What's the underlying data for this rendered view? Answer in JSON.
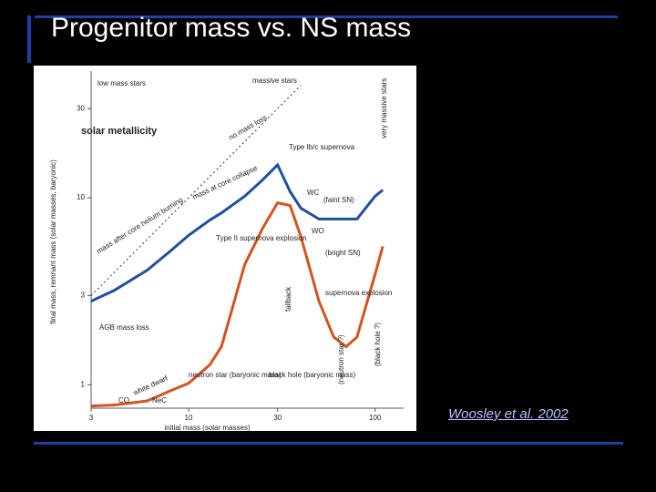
{
  "title": "Progenitor mass vs. NS mass",
  "citation": "Woosley et al. 2002",
  "chart_data": {
    "type": "line",
    "x_label": "initial mass (solar masses)",
    "y_label": "final mass, remnant mass (solar masses, baryonic)",
    "x_log": true,
    "y_log": true,
    "xlim": [
      3,
      130
    ],
    "ylim": [
      0.75,
      45
    ],
    "xticks": [
      3,
      10,
      30,
      100
    ],
    "yticks": [
      1,
      3,
      10,
      30
    ],
    "x": [
      3,
      4,
      6,
      8,
      10,
      13,
      15,
      20,
      25,
      30,
      35,
      40,
      50,
      60,
      70,
      80,
      100,
      110
    ],
    "series": [
      {
        "color": "#1f4fa0",
        "dash": false,
        "values": [
          2.8,
          3.2,
          4.1,
          5.2,
          6.3,
          7.6,
          8.3,
          10.2,
          12.5,
          15,
          10.8,
          8.8,
          7.7,
          7.7,
          7.7,
          7.7,
          10.2,
          11
        ]
      },
      {
        "color": "#d2541e",
        "dash": false,
        "values": [
          0.77,
          0.78,
          0.82,
          0.93,
          1.02,
          1.28,
          1.6,
          4.4,
          6.9,
          9.4,
          9.1,
          6.2,
          2.8,
          1.8,
          1.6,
          1.8,
          3.9,
          5.5
        ]
      },
      {
        "color": "#333333",
        "dash": true,
        "values": [
          3,
          4,
          6,
          8,
          10,
          13,
          15,
          20,
          25,
          30,
          35,
          40,
          null,
          null,
          null,
          null,
          null,
          null
        ]
      }
    ],
    "annotations": [
      "low mass stars",
      "massive stars",
      "solar metallicity",
      "very massive stars",
      "no mass loss",
      "mass at core collapse",
      "mass after core helium burning",
      "Type Ib/c supernova",
      "Type II supernova explosion",
      "AGB mass loss",
      "(faint SN)",
      "(bright SN)",
      "supernova explosion",
      "fallback",
      "neutron star (baryonic mass)",
      "black hole (baryonic mass)",
      "white dwarf",
      "CO",
      "NeC",
      "(neutron star ?)",
      "(black hole ?)",
      "WO",
      "WC"
    ]
  }
}
